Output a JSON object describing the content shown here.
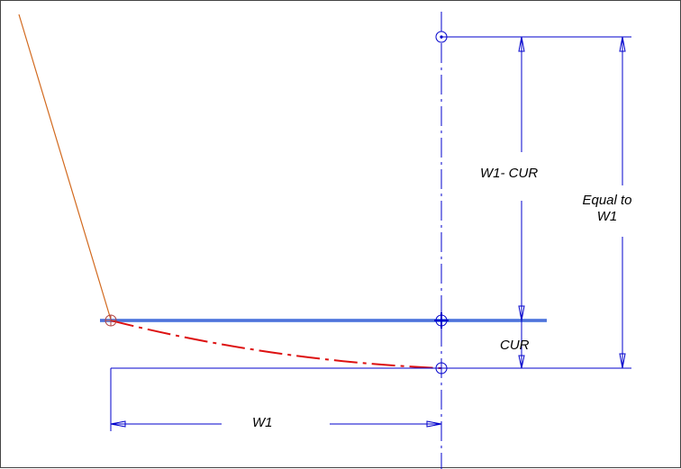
{
  "labels": {
    "w1_minus_cur": "W1- CUR",
    "equal_to_line1": "Equal to",
    "equal_to_line2": "W1",
    "cur": "CUR",
    "w1": "W1"
  },
  "colors": {
    "construction_blue": "#0000cc",
    "horizontal_bar": "#6b8fe6",
    "curve_red": "#dd1111",
    "edge_orange": "#d2691e",
    "border": "#444444"
  }
}
